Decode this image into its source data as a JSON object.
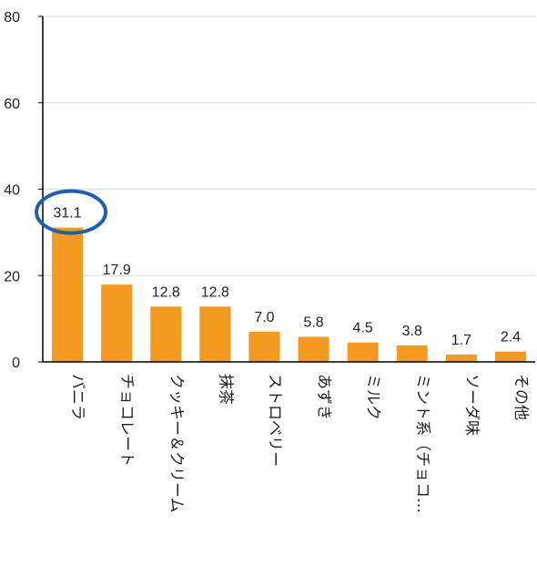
{
  "chart_data": {
    "type": "bar",
    "title": "",
    "xlabel": "",
    "ylabel": "",
    "ylim": [
      0,
      80
    ],
    "yticks": [
      0,
      20,
      40,
      60,
      80
    ],
    "grid": true,
    "categories": [
      "バニラ",
      "チョコレート",
      "クッキー＆クリーム",
      "抹茶",
      "ストロベリー",
      "あずき",
      "ミルク",
      "ミント系（チョコ…",
      "ソーダ味",
      "その他"
    ],
    "values": [
      31.1,
      17.9,
      12.8,
      12.8,
      7.0,
      5.8,
      4.5,
      3.8,
      1.7,
      2.4
    ],
    "data_labels": [
      "31.1",
      "17.9",
      "12.8",
      "12.8",
      "7.0",
      "5.8",
      "4.5",
      "3.8",
      "1.7",
      "2.4"
    ],
    "highlighted_index": 0,
    "colors": {
      "bar": "#F39A1F",
      "axis": "#000000",
      "grid": "#d9d9d9",
      "highlight_circle": "#1F5FB0"
    }
  }
}
